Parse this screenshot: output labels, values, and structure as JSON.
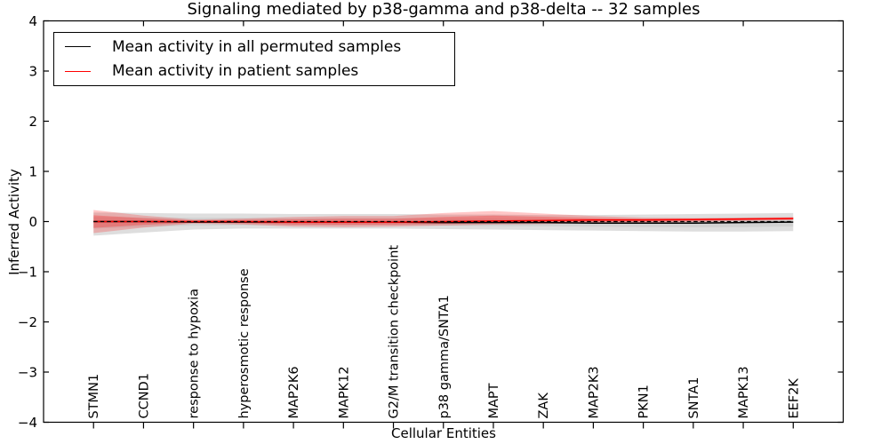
{
  "figure": {
    "title": "Signaling mediated by p38-gamma and p38-delta -- 32 samples",
    "xlabel": "Cellular Entities",
    "ylabel": "Inferred Activity"
  },
  "legend": {
    "items": [
      {
        "label": "Mean activity in all permuted samples",
        "color": "#000000"
      },
      {
        "label": "Mean activity in patient samples",
        "color": "#ff0000"
      }
    ]
  },
  "chart_data": {
    "type": "line",
    "title": "Signaling mediated by p38-gamma and p38-delta -- 32 samples",
    "xlabel": "Cellular Entities",
    "ylabel": "Inferred Activity",
    "grid": false,
    "legend_position": "upper left",
    "categories": [
      "STMN1",
      "CCND1",
      "response to hypoxia",
      "hyperosmotic response",
      "MAP2K6",
      "MAPK12",
      "G2/M transition checkpoint",
      "p38 gamma/SNTA1",
      "MAPT",
      "ZAK",
      "MAP2K3",
      "PKN1",
      "SNTA1",
      "MAPK13",
      "EEF2K"
    ],
    "xlim": [
      -1,
      15
    ],
    "ylim": [
      -4,
      4
    ],
    "yticks": [
      -4,
      -3,
      -2,
      -1,
      0,
      1,
      2,
      3,
      4
    ],
    "top_tick_category_indices": [
      1,
      3,
      5,
      7,
      9,
      11,
      13
    ],
    "zero_line": {
      "y": 0,
      "style": "dashed",
      "color": "#000000"
    },
    "series": [
      {
        "name": "Mean activity in all permuted samples",
        "color": "#000000",
        "values": [
          0.0,
          0.0,
          -0.01,
          -0.01,
          -0.01,
          -0.01,
          -0.01,
          -0.02,
          -0.02,
          -0.02,
          -0.03,
          -0.03,
          -0.03,
          -0.02,
          -0.01
        ]
      },
      {
        "name": "Mean activity in patient samples",
        "color": "#ff0000",
        "values": [
          0.0,
          0.0,
          0.0,
          0.0,
          -0.01,
          -0.01,
          -0.01,
          0.0,
          0.01,
          0.02,
          0.03,
          0.03,
          0.04,
          0.05,
          0.06
        ]
      }
    ],
    "bands": [
      {
        "name": "permuted-confidence-band",
        "series_index": 0,
        "color": "#888888",
        "outer_opacity": 0.28,
        "inner_opacity": 0.14,
        "inner_scale": 0.5,
        "upper": [
          0.18,
          0.17,
          0.16,
          0.16,
          0.15,
          0.15,
          0.15,
          0.14,
          0.14,
          0.13,
          0.13,
          0.14,
          0.15,
          0.16,
          0.17
        ],
        "lower": [
          -0.28,
          -0.22,
          -0.16,
          -0.14,
          -0.14,
          -0.14,
          -0.14,
          -0.15,
          -0.16,
          -0.17,
          -0.18,
          -0.19,
          -0.2,
          -0.2,
          -0.19
        ]
      },
      {
        "name": "patient-confidence-band",
        "series_index": 1,
        "color": "#ff0000",
        "outer_opacity": 0.22,
        "inner_opacity": 0.25,
        "inner_scale": 0.55,
        "upper": [
          0.23,
          0.12,
          0.04,
          0.06,
          0.09,
          0.11,
          0.11,
          0.17,
          0.21,
          0.16,
          0.11,
          0.08,
          0.07,
          0.08,
          0.09
        ],
        "lower": [
          -0.23,
          -0.12,
          -0.04,
          -0.06,
          -0.1,
          -0.11,
          -0.1,
          -0.08,
          -0.06,
          -0.05,
          -0.03,
          -0.02,
          -0.01,
          0.01,
          0.03
        ]
      }
    ]
  }
}
